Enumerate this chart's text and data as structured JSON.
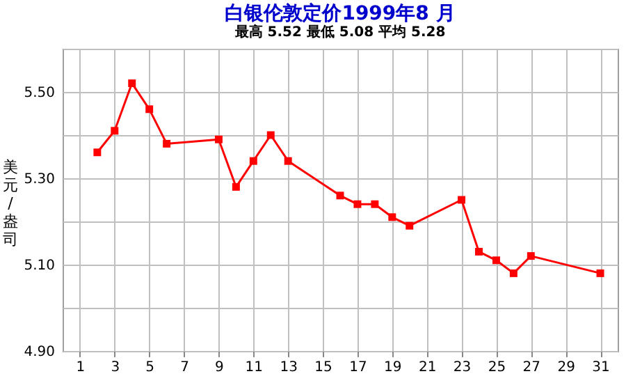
{
  "chart_data": {
    "type": "line",
    "title": "白银伦敦定价1999年8 月",
    "subtitle": "最高  5.52      最低  5.08      平均  5.28",
    "ylabel": "美元/盎司",
    "series": [
      {
        "color": "#ff0000",
        "x": [
          2,
          3,
          4,
          5,
          6,
          9,
          10,
          11,
          12,
          13,
          16,
          17,
          18,
          19,
          20,
          23,
          24,
          25,
          26,
          27,
          31
        ],
        "values": [
          5.36,
          5.41,
          5.52,
          5.46,
          5.38,
          5.39,
          5.28,
          5.34,
          5.4,
          5.34,
          5.26,
          5.24,
          5.24,
          5.21,
          5.19,
          5.25,
          5.13,
          5.11,
          5.08,
          5.12,
          5.08
        ]
      }
    ],
    "xlim": [
      0,
      32
    ],
    "xticks": [
      1,
      3,
      5,
      7,
      9,
      11,
      13,
      15,
      17,
      19,
      21,
      23,
      25,
      27,
      29,
      31
    ],
    "ylim": [
      4.9,
      5.6
    ],
    "yticks": [
      {
        "value": 4.9,
        "label": "4.90"
      },
      {
        "value": 5.0,
        "label": null
      },
      {
        "value": 5.1,
        "label": "5.10"
      },
      {
        "value": 5.2,
        "label": null
      },
      {
        "value": 5.3,
        "label": "5.30"
      },
      {
        "value": 5.4,
        "label": null
      },
      {
        "value": 5.5,
        "label": "5.50"
      },
      {
        "value": 5.6,
        "label": null
      }
    ],
    "grid": true,
    "marker": "square",
    "line_style": "solid"
  }
}
